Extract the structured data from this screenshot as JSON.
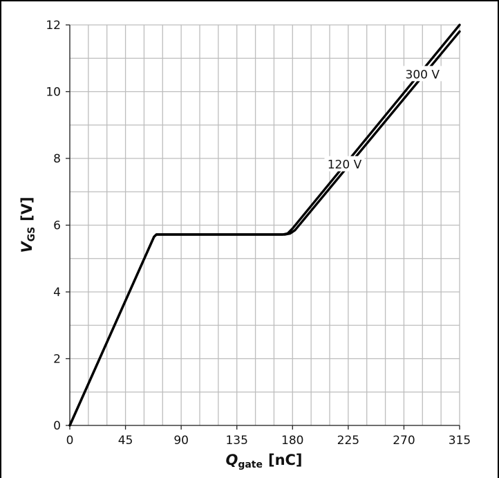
{
  "chart_data": {
    "type": "line",
    "title": "",
    "xlabel": {
      "main": "Q",
      "sub": "gate",
      "unit": "[nC]"
    },
    "ylabel": {
      "main": "V",
      "sub": "GS",
      "unit": "[V]"
    },
    "xlim": [
      0,
      315
    ],
    "ylim": [
      0,
      12
    ],
    "x_ticks": [
      "0",
      "45",
      "90",
      "135",
      "180",
      "225",
      "270",
      "315"
    ],
    "y_ticks": [
      "0",
      "2",
      "4",
      "6",
      "8",
      "10",
      "12"
    ],
    "x_tick_values": [
      0,
      45,
      90,
      135,
      180,
      225,
      270,
      315
    ],
    "y_tick_values": [
      0,
      2,
      4,
      6,
      8,
      10,
      12
    ],
    "x_grid_step": 15,
    "y_grid_step": 1,
    "grid": true,
    "series": [
      {
        "name": "120 V",
        "color": "#000000",
        "x": [
          0,
          68,
          70,
          172,
          176,
          180,
          315
        ],
        "y": [
          0,
          5.65,
          5.72,
          5.72,
          5.75,
          5.9,
          12.0
        ]
      },
      {
        "name": "300 V",
        "color": "#000000",
        "x": [
          0,
          68,
          70,
          174,
          178,
          182,
          315
        ],
        "y": [
          0,
          5.65,
          5.72,
          5.72,
          5.75,
          5.85,
          11.8
        ]
      }
    ],
    "annotations": [
      {
        "text": "120 V",
        "x": 222,
        "y": 7.8
      },
      {
        "text": "300 V",
        "x": 285,
        "y": 10.5
      }
    ]
  }
}
